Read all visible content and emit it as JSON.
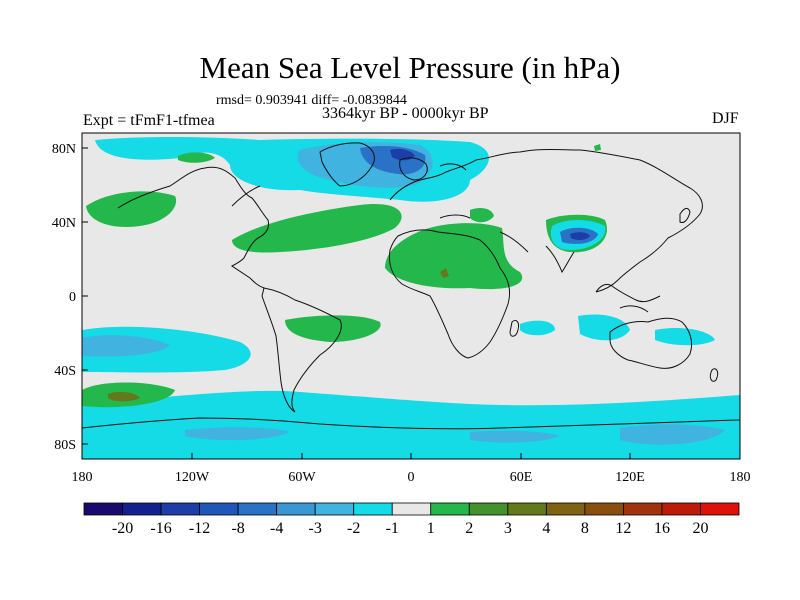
{
  "title": "Mean Sea Level Pressure (in hPa)",
  "stats": "rmsd= 0.903941 diff= -0.0839844",
  "experiment": "Expt = tFmF1-tfmea",
  "period": "3364kyr BP - 0000kyr BP",
  "season": "DJF",
  "lat_labels": [
    "80N",
    "40N",
    "0",
    "40S",
    "80S"
  ],
  "lon_labels": [
    "180",
    "120W",
    "60W",
    "0",
    "60E",
    "120E",
    "180"
  ],
  "colorbar": {
    "colors": [
      "#1a0a6e",
      "#15208f",
      "#1d3ea6",
      "#1f56b8",
      "#2a72c6",
      "#3a97d5",
      "#40b3e0",
      "#14dbe6",
      "#e8e8e8",
      "#24b84c",
      "#43922c",
      "#637a1c",
      "#7d6312",
      "#8a4f0f",
      "#a0330c",
      "#bd1a0a",
      "#dd1208"
    ],
    "labels": [
      "-20",
      "-16",
      "-12",
      "-8",
      "-4",
      "-3",
      "-2",
      "-1",
      "1",
      "2",
      "3",
      "4",
      "8",
      "12",
      "16",
      "20"
    ]
  },
  "map_colors": {
    "neutral": "#e8e8e8",
    "cyan": "#14dbe6",
    "light_blue": "#40b3e0",
    "blue": "#2a72c6",
    "dark_blue": "#1d3ea6",
    "green": "#24b84c",
    "dark_green": "#637a1c",
    "coast": "#111111"
  }
}
